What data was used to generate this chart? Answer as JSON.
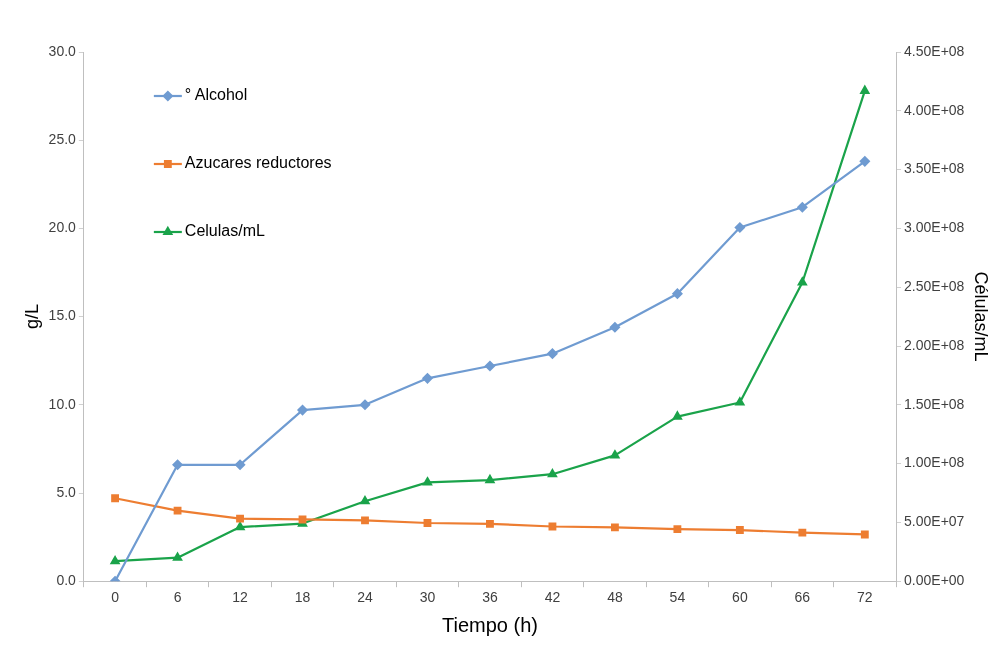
{
  "chart_data": {
    "type": "line",
    "xlabel": "Tiempo (h)",
    "ylabel": "g/L",
    "y2label": "Células/mL",
    "categories": [
      "0",
      "6",
      "12",
      "18",
      "24",
      "30",
      "36",
      "42",
      "48",
      "54",
      "60",
      "66",
      "72"
    ],
    "series": [
      {
        "name": "° Alcohol",
        "color": "#6f9bd1",
        "marker": "diamond",
        "values": [
          0,
          6.6,
          6.6,
          9.7,
          10.0,
          11.5,
          12.2,
          12.9,
          14.4,
          16.3,
          20.05,
          21.2,
          23.8
        ]
      },
      {
        "name": "Azucares reductores",
        "color": "#ed7d31",
        "marker": "square",
        "values": [
          4.7,
          4.0,
          3.55,
          3.5,
          3.45,
          3.3,
          3.25,
          3.1,
          3.05,
          2.95,
          2.9,
          2.75,
          2.65
        ]
      },
      {
        "name": "Celulas/mL",
        "color": "#1aa34a",
        "marker": "triangle",
        "axis": "y2",
        "values": [
          17000000,
          20000000,
          46000000,
          49000000,
          68000000,
          84000000,
          86000000,
          91000000,
          107000000,
          140000000,
          152000000,
          254000000,
          417000000
        ]
      }
    ],
    "ylim": [
      0,
      30
    ],
    "yticks": [
      {
        "value": 0,
        "label": "0.0"
      },
      {
        "value": 5,
        "label": "5.0"
      },
      {
        "value": 10,
        "label": "10.0"
      },
      {
        "value": 15,
        "label": "15.0"
      },
      {
        "value": 20,
        "label": "20.0"
      },
      {
        "value": 25,
        "label": "25.0"
      },
      {
        "value": 30,
        "label": "30.0"
      }
    ],
    "y2lim": [
      0,
      450000000
    ],
    "y2ticks": [
      {
        "value": 0,
        "label": "0.00E+00"
      },
      {
        "value": 50000000,
        "label": "5.00E+07"
      },
      {
        "value": 100000000,
        "label": "1.00E+08"
      },
      {
        "value": 150000000,
        "label": "1.50E+08"
      },
      {
        "value": 200000000,
        "label": "2.00E+08"
      },
      {
        "value": 250000000,
        "label": "2.50E+08"
      },
      {
        "value": 300000000,
        "label": "3.00E+08"
      },
      {
        "value": 350000000,
        "label": "3.50E+08"
      },
      {
        "value": 400000000,
        "label": "4.00E+08"
      },
      {
        "value": 450000000,
        "label": "4.50E+08"
      }
    ],
    "grid": false,
    "legend": "top left",
    "line_style": "solid"
  }
}
